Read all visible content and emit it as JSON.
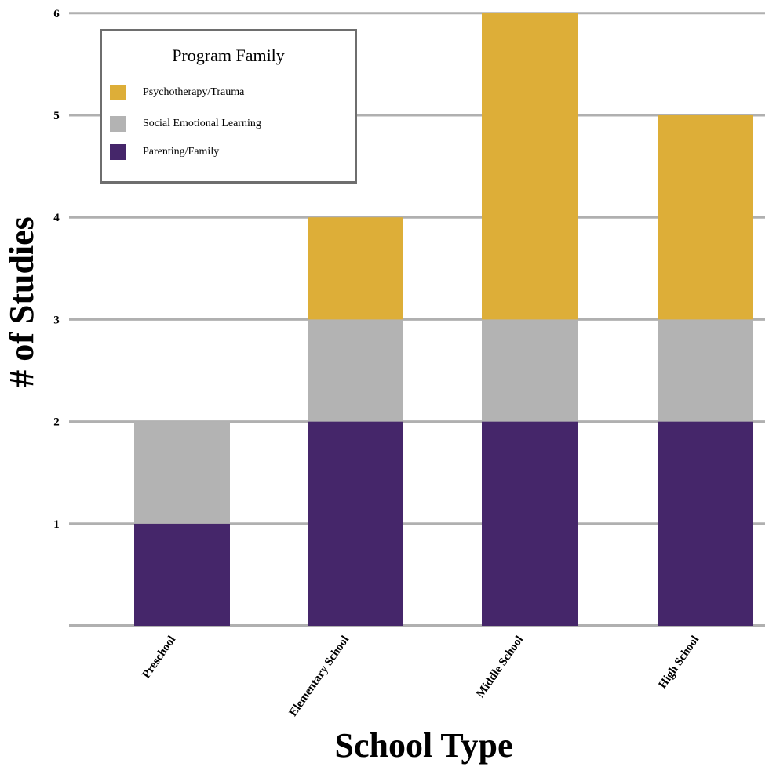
{
  "chart_data": {
    "type": "bar",
    "stacked": true,
    "title": "",
    "xlabel": "School Type",
    "ylabel": "# of Studies",
    "categories": [
      "Preschool",
      "Elementary School",
      "Middle School",
      "High School"
    ],
    "series": [
      {
        "name": "Parenting/Family",
        "color": "#45266a",
        "values": [
          1,
          2,
          2,
          2
        ]
      },
      {
        "name": "Social Emotional Learning",
        "color": "#b3b3b3",
        "values": [
          1,
          1,
          1,
          1
        ]
      },
      {
        "name": "Psychotherapy/Trauma",
        "color": "#ddae38",
        "values": [
          0,
          1,
          3,
          2
        ]
      }
    ],
    "ylim": [
      0,
      6
    ],
    "yticks": [
      "1",
      "2",
      "3",
      "4",
      "5",
      "6"
    ],
    "grid": true,
    "legend": {
      "title": "Program Family",
      "placement": "top-left",
      "entries": [
        "Psychotherapy/Trauma",
        "Social Emotional Learning",
        "Parenting/Family"
      ]
    }
  }
}
